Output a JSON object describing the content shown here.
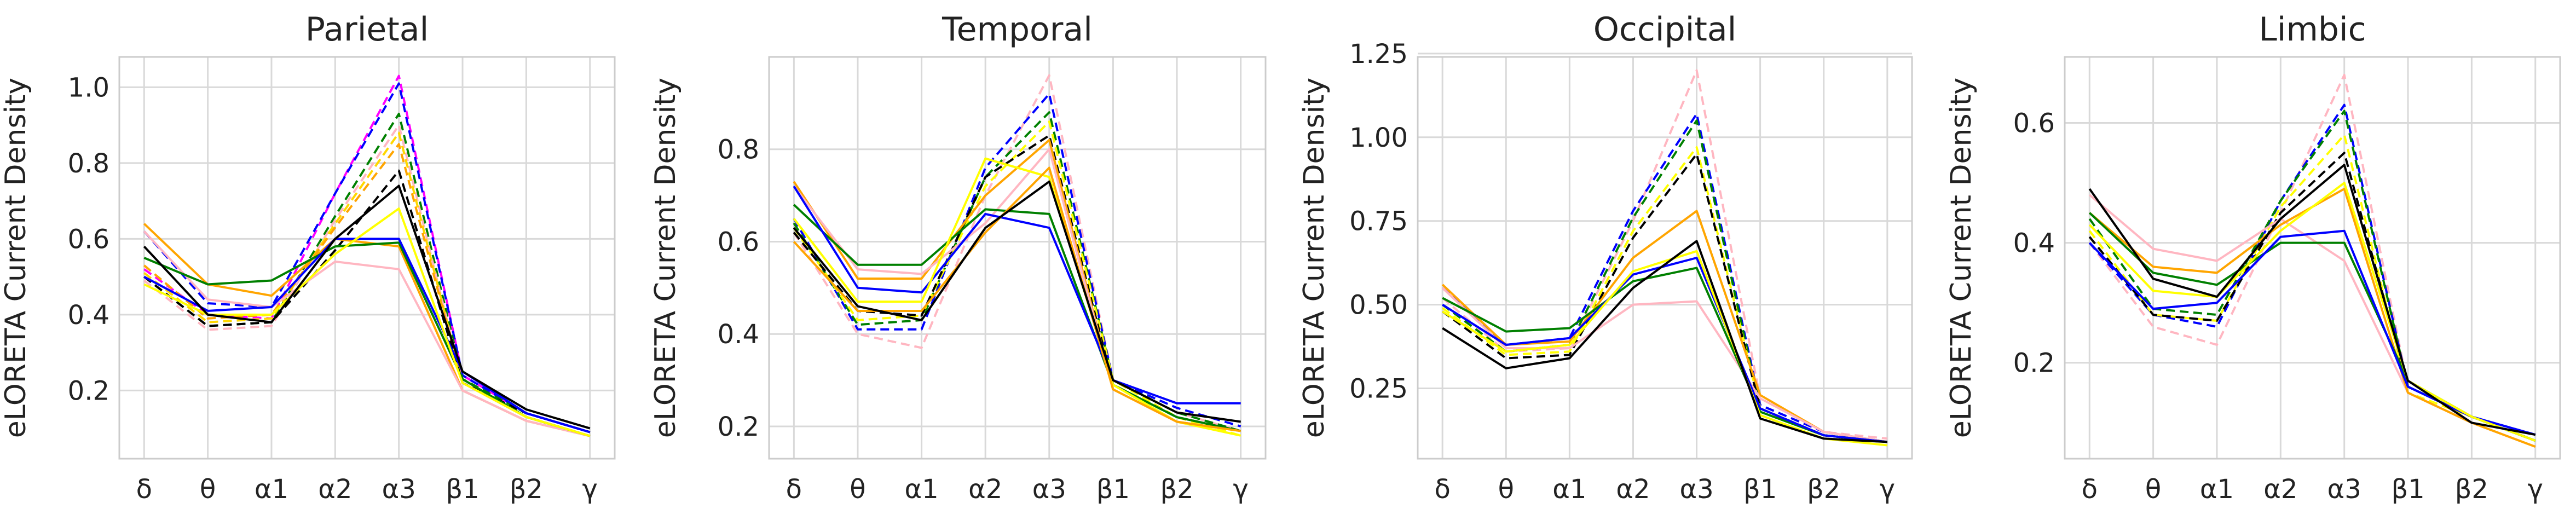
{
  "figure": {
    "background": "#ffffff",
    "grid": true,
    "ylabel": "eLORETA Current Density"
  },
  "chart_data": [
    {
      "type": "line",
      "title": "Parietal",
      "ylabel": "eLORETA Current Density",
      "categories": [
        "δ",
        "θ",
        "α1",
        "α2",
        "α3",
        "β1",
        "β2",
        "γ"
      ],
      "ylim": [
        0.02,
        1.08
      ],
      "yticks": [
        0.2,
        0.4,
        0.6,
        0.8,
        1.0
      ],
      "ytick_labels": [
        "0.2",
        "0.4",
        "0.6",
        "0.8",
        "1.0"
      ],
      "series": [
        {
          "color": "#ff00ff",
          "style": "dashed",
          "values": [
            0.52,
            0.4,
            0.39,
            0.72,
            1.03,
            0.24,
            0.14,
            0.09
          ]
        },
        {
          "color": "#0000ff",
          "style": "dashed",
          "values": [
            0.62,
            0.43,
            0.42,
            0.72,
            1.01,
            0.24,
            0.14,
            0.09
          ]
        },
        {
          "color": "#008000",
          "style": "dashed",
          "values": [
            0.5,
            0.37,
            0.38,
            0.66,
            0.93,
            0.23,
            0.14,
            0.09
          ]
        },
        {
          "color": "#ffb6c1",
          "style": "dashed",
          "values": [
            0.49,
            0.36,
            0.37,
            0.65,
            0.9,
            0.22,
            0.13,
            0.08
          ]
        },
        {
          "color": "#ffd700",
          "style": "dashed",
          "values": [
            0.51,
            0.38,
            0.39,
            0.64,
            0.88,
            0.22,
            0.13,
            0.08
          ]
        },
        {
          "color": "#ffa500",
          "style": "dashed",
          "values": [
            0.53,
            0.39,
            0.4,
            0.63,
            0.85,
            0.22,
            0.13,
            0.08
          ]
        },
        {
          "color": "#000000",
          "style": "dashed",
          "values": [
            0.5,
            0.37,
            0.38,
            0.57,
            0.78,
            0.22,
            0.14,
            0.09
          ]
        },
        {
          "color": "#ffa500",
          "style": "solid",
          "values": [
            0.64,
            0.48,
            0.45,
            0.6,
            0.58,
            0.2,
            0.12,
            0.08
          ]
        },
        {
          "color": "#ffb6c1",
          "style": "solid",
          "values": [
            0.62,
            0.44,
            0.42,
            0.54,
            0.52,
            0.2,
            0.12,
            0.08
          ]
        },
        {
          "color": "#008000",
          "style": "solid",
          "values": [
            0.55,
            0.48,
            0.49,
            0.58,
            0.59,
            0.23,
            0.13,
            0.08
          ]
        },
        {
          "color": "#0000ff",
          "style": "solid",
          "values": [
            0.5,
            0.41,
            0.42,
            0.6,
            0.6,
            0.25,
            0.14,
            0.09
          ]
        },
        {
          "color": "#ffff00",
          "style": "solid",
          "values": [
            0.48,
            0.4,
            0.4,
            0.56,
            0.68,
            0.22,
            0.13,
            0.08
          ]
        },
        {
          "color": "#000000",
          "style": "solid",
          "values": [
            0.58,
            0.4,
            0.38,
            0.6,
            0.74,
            0.25,
            0.15,
            0.1
          ]
        }
      ]
    },
    {
      "type": "line",
      "title": "Temporal",
      "ylabel": "eLORETA Current Density",
      "categories": [
        "δ",
        "θ",
        "α1",
        "α2",
        "α3",
        "β1",
        "β2",
        "γ"
      ],
      "ylim": [
        0.13,
        1.0
      ],
      "yticks": [
        0.2,
        0.4,
        0.6,
        0.8
      ],
      "ytick_labels": [
        "0.2",
        "0.4",
        "0.6",
        "0.8"
      ],
      "series": [
        {
          "color": "#ffb6c1",
          "style": "dashed",
          "values": [
            0.62,
            0.4,
            0.37,
            0.7,
            0.96,
            0.3,
            0.23,
            0.19
          ]
        },
        {
          "color": "#0000ff",
          "style": "dashed",
          "values": [
            0.65,
            0.41,
            0.41,
            0.76,
            0.92,
            0.3,
            0.24,
            0.2
          ]
        },
        {
          "color": "#008000",
          "style": "dashed",
          "values": [
            0.64,
            0.42,
            0.43,
            0.74,
            0.88,
            0.3,
            0.23,
            0.19
          ]
        },
        {
          "color": "#ffff00",
          "style": "dashed",
          "values": [
            0.63,
            0.43,
            0.44,
            0.72,
            0.86,
            0.3,
            0.22,
            0.18
          ]
        },
        {
          "color": "#000000",
          "style": "dashed",
          "values": [
            0.62,
            0.45,
            0.44,
            0.74,
            0.83,
            0.29,
            0.22,
            0.19
          ]
        },
        {
          "color": "#ffa500",
          "style": "solid",
          "values": [
            0.73,
            0.52,
            0.52,
            0.7,
            0.82,
            0.28,
            0.21,
            0.19
          ]
        },
        {
          "color": "#ffb6c1",
          "style": "solid",
          "values": [
            0.72,
            0.54,
            0.53,
            0.64,
            0.8,
            0.28,
            0.21,
            0.19
          ]
        },
        {
          "color": "#008000",
          "style": "solid",
          "values": [
            0.68,
            0.55,
            0.55,
            0.67,
            0.66,
            0.29,
            0.22,
            0.19
          ]
        },
        {
          "color": "#0000ff",
          "style": "solid",
          "values": [
            0.72,
            0.5,
            0.49,
            0.66,
            0.63,
            0.3,
            0.25,
            0.25
          ]
        },
        {
          "color": "#ffff00",
          "style": "solid",
          "values": [
            0.65,
            0.47,
            0.47,
            0.78,
            0.74,
            0.29,
            0.21,
            0.18
          ]
        },
        {
          "color": "#ffa500",
          "style": "solid",
          "values": [
            0.6,
            0.45,
            0.45,
            0.62,
            0.76,
            0.28,
            0.21,
            0.19
          ]
        },
        {
          "color": "#000000",
          "style": "solid",
          "values": [
            0.63,
            0.46,
            0.43,
            0.63,
            0.73,
            0.3,
            0.23,
            0.21
          ]
        }
      ]
    },
    {
      "type": "line",
      "title": "Occipital",
      "ylabel": "eLORETA Current Density",
      "categories": [
        "δ",
        "θ",
        "α1",
        "α2",
        "α3",
        "β1",
        "β2",
        "γ"
      ],
      "ylim": [
        0.04,
        1.24
      ],
      "yticks": [
        0.25,
        0.5,
        0.75,
        1.0,
        1.25
      ],
      "ytick_labels": [
        "0.25",
        "0.50",
        "0.75",
        "1.00",
        "1.25"
      ],
      "series": [
        {
          "color": "#ffb6c1",
          "style": "dashed",
          "values": [
            0.52,
            0.36,
            0.37,
            0.75,
            1.2,
            0.22,
            0.12,
            0.1
          ]
        },
        {
          "color": "#0000ff",
          "style": "dashed",
          "values": [
            0.55,
            0.38,
            0.4,
            0.78,
            1.07,
            0.2,
            0.12,
            0.09
          ]
        },
        {
          "color": "#008000",
          "style": "dashed",
          "values": [
            0.5,
            0.36,
            0.38,
            0.76,
            1.05,
            0.19,
            0.11,
            0.09
          ]
        },
        {
          "color": "#ffff00",
          "style": "dashed",
          "values": [
            0.49,
            0.35,
            0.36,
            0.72,
            0.97,
            0.19,
            0.11,
            0.09
          ]
        },
        {
          "color": "#000000",
          "style": "dashed",
          "values": [
            0.48,
            0.34,
            0.35,
            0.7,
            0.95,
            0.19,
            0.11,
            0.09
          ]
        },
        {
          "color": "#ffa500",
          "style": "solid",
          "values": [
            0.56,
            0.38,
            0.39,
            0.64,
            0.78,
            0.23,
            0.12,
            0.09
          ]
        },
        {
          "color": "#ffb6c1",
          "style": "solid",
          "values": [
            0.55,
            0.37,
            0.37,
            0.5,
            0.51,
            0.22,
            0.12,
            0.09
          ]
        },
        {
          "color": "#008000",
          "style": "solid",
          "values": [
            0.52,
            0.42,
            0.43,
            0.57,
            0.61,
            0.18,
            0.11,
            0.09
          ]
        },
        {
          "color": "#0000ff",
          "style": "solid",
          "values": [
            0.5,
            0.38,
            0.4,
            0.59,
            0.64,
            0.19,
            0.11,
            0.09
          ]
        },
        {
          "color": "#ffff00",
          "style": "solid",
          "values": [
            0.48,
            0.36,
            0.38,
            0.6,
            0.66,
            0.17,
            0.1,
            0.08
          ]
        },
        {
          "color": "#000000",
          "style": "solid",
          "values": [
            0.43,
            0.31,
            0.34,
            0.55,
            0.69,
            0.16,
            0.1,
            0.09
          ]
        }
      ]
    },
    {
      "type": "line",
      "title": "Limbic",
      "ylabel": "eLORETA Current Density",
      "categories": [
        "δ",
        "θ",
        "α1",
        "α2",
        "α3",
        "β1",
        "β2",
        "γ"
      ],
      "ylim": [
        0.04,
        0.71
      ],
      "yticks": [
        0.2,
        0.4,
        0.6
      ],
      "ytick_labels": [
        "0.2",
        "0.4",
        "0.6"
      ],
      "series": [
        {
          "color": "#ffb6c1",
          "style": "dashed",
          "values": [
            0.4,
            0.26,
            0.23,
            0.45,
            0.68,
            0.16,
            0.11,
            0.07
          ]
        },
        {
          "color": "#0000ff",
          "style": "dashed",
          "values": [
            0.4,
            0.28,
            0.26,
            0.47,
            0.63,
            0.16,
            0.11,
            0.08
          ]
        },
        {
          "color": "#008000",
          "style": "dashed",
          "values": [
            0.44,
            0.29,
            0.28,
            0.47,
            0.62,
            0.16,
            0.11,
            0.07
          ]
        },
        {
          "color": "#ffff00",
          "style": "dashed",
          "values": [
            0.42,
            0.28,
            0.27,
            0.46,
            0.58,
            0.15,
            0.11,
            0.07
          ]
        },
        {
          "color": "#000000",
          "style": "dashed",
          "values": [
            0.41,
            0.28,
            0.27,
            0.45,
            0.55,
            0.16,
            0.11,
            0.07
          ]
        },
        {
          "color": "#ffb6c1",
          "style": "solid",
          "values": [
            0.48,
            0.39,
            0.37,
            0.44,
            0.37,
            0.15,
            0.1,
            0.06
          ]
        },
        {
          "color": "#ffa500",
          "style": "solid",
          "values": [
            0.45,
            0.36,
            0.35,
            0.43,
            0.49,
            0.15,
            0.1,
            0.06
          ]
        },
        {
          "color": "#008000",
          "style": "solid",
          "values": [
            0.45,
            0.35,
            0.33,
            0.4,
            0.4,
            0.17,
            0.11,
            0.07
          ]
        },
        {
          "color": "#0000ff",
          "style": "solid",
          "values": [
            0.4,
            0.29,
            0.3,
            0.41,
            0.42,
            0.16,
            0.11,
            0.08
          ]
        },
        {
          "color": "#ffff00",
          "style": "solid",
          "values": [
            0.43,
            0.32,
            0.31,
            0.42,
            0.5,
            0.17,
            0.11,
            0.07
          ]
        },
        {
          "color": "#000000",
          "style": "solid",
          "values": [
            0.49,
            0.34,
            0.31,
            0.44,
            0.53,
            0.17,
            0.1,
            0.08
          ]
        }
      ]
    }
  ]
}
